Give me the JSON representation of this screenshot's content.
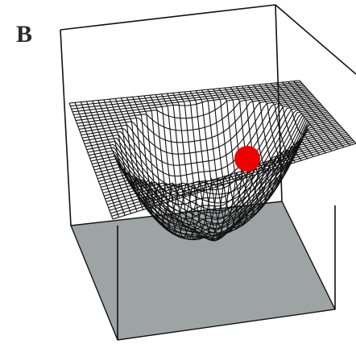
{
  "panel_label": "B"
}
